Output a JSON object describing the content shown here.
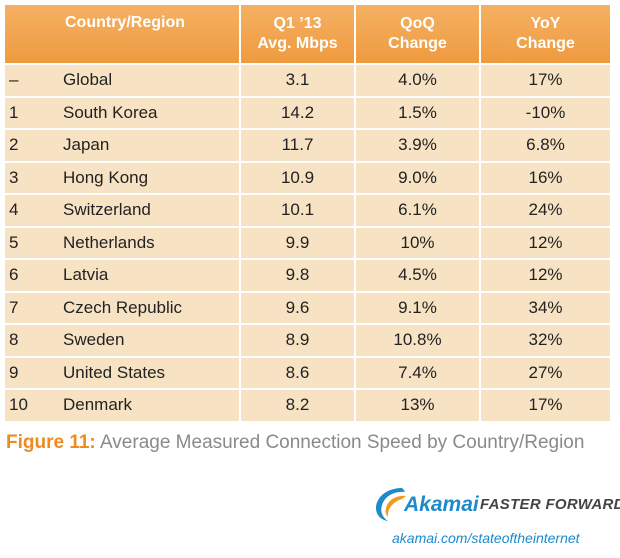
{
  "table": {
    "headers": {
      "country": "Country/Region",
      "speed_line1": "Q1 ’13",
      "speed_line2": "Avg. Mbps",
      "qoq_line1": "QoQ",
      "qoq_line2": "Change",
      "yoy_line1": "YoY",
      "yoy_line2": "Change"
    },
    "rows": [
      {
        "rank": "–",
        "country": "Global",
        "speed": "3.1",
        "qoq": "4.0%",
        "yoy": "17%"
      },
      {
        "rank": "1",
        "country": "South Korea",
        "speed": "14.2",
        "qoq": "1.5%",
        "yoy": "-10%"
      },
      {
        "rank": "2",
        "country": "Japan",
        "speed": "11.7",
        "qoq": "3.9%",
        "yoy": "6.8%"
      },
      {
        "rank": "3",
        "country": "Hong Kong",
        "speed": "10.9",
        "qoq": "9.0%",
        "yoy": "16%"
      },
      {
        "rank": "4",
        "country": "Switzerland",
        "speed": "10.1",
        "qoq": "6.1%",
        "yoy": "24%"
      },
      {
        "rank": "5",
        "country": "Netherlands",
        "speed": "9.9",
        "qoq": "10%",
        "yoy": "12%"
      },
      {
        "rank": "6",
        "country": "Latvia",
        "speed": "9.8",
        "qoq": "4.5%",
        "yoy": "12%"
      },
      {
        "rank": "7",
        "country": "Czech Republic",
        "speed": "9.6",
        "qoq": "9.1%",
        "yoy": "34%"
      },
      {
        "rank": "8",
        "country": "Sweden",
        "speed": "8.9",
        "qoq": "10.8%",
        "yoy": "32%"
      },
      {
        "rank": "9",
        "country": "United States",
        "speed": "8.6",
        "qoq": "7.4%",
        "yoy": "27%"
      },
      {
        "rank": "10",
        "country": "Denmark",
        "speed": "8.2",
        "qoq": "13%",
        "yoy": "17%"
      }
    ]
  },
  "caption": {
    "figure_label": "Figure 11:",
    "text": " Average Measured Connection Speed by Country/Region"
  },
  "footer": {
    "brand": "Akamai",
    "tagline": "FASTER FORWARD",
    "url": "akamai.com/stateoftheinternet",
    "logo_icon": "akamai-swoosh-icon",
    "brand_color": "#1d8acb",
    "header_color": "#ef9a3e",
    "row_color": "#f7e3c3"
  }
}
